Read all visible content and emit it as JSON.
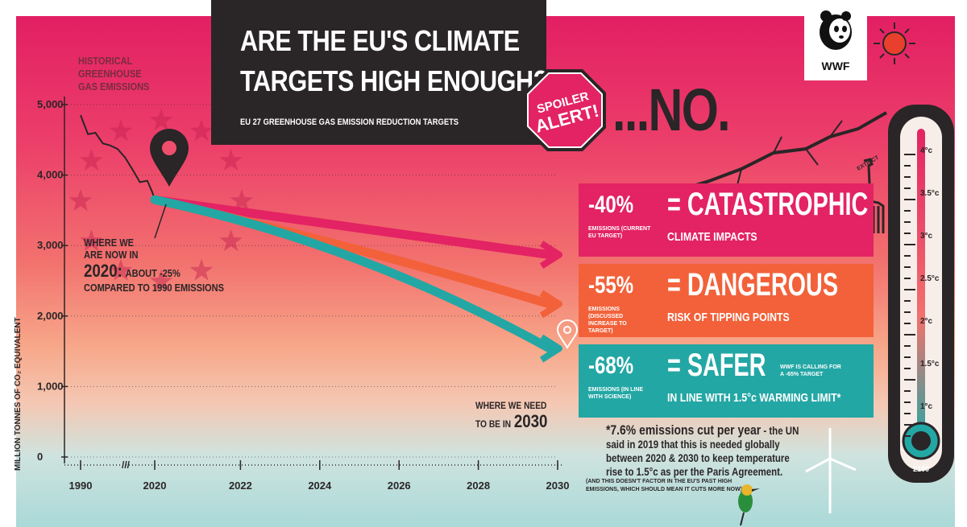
{
  "header": {
    "title_line1": "ARE THE EU'S CLIMATE",
    "title_line2": "TARGETS HIGH ENOUGH?",
    "subtitle": "EU 27 GREENHOUSE GAS EMISSION REDUCTION TARGETS",
    "spoiler_line1": "SPOILER",
    "spoiler_line2": "ALERT!",
    "answer": "...NO."
  },
  "logo": {
    "label": "WWF",
    "icon": "panda-icon"
  },
  "annotations": {
    "historical": [
      "HISTORICAL",
      "GREENHOUSE",
      "GAS EMISSIONS"
    ],
    "now_line1": "WHERE WE",
    "now_line2": "ARE NOW IN",
    "now_year": "2020:",
    "now_detail": "ABOUT -25%",
    "now_detail2": "COMPARED TO 1990 EMISSIONS",
    "need_line1": "WHERE WE NEED",
    "need_line2": "TO BE IN",
    "need_year": "2030",
    "wwf_calling": "WWF IS CALLING FOR A -65% TARGET",
    "callout_lead": "*7.6% emissions cut per year",
    "callout_rest": " - the UN said in 2019 that this is needed globally between 2020 & 2030 to keep temperature rise to 1.5°c as per the Paris Agreement.",
    "callout_note": "(AND THIS DOESN'T FACTOR IN THE EU'S PAST HIGH EMISSIONS, WHICH SHOULD MEAN IT CUTS MORE NOW)",
    "extinct": "EXTINCT"
  },
  "targets": [
    {
      "pct": "-40%",
      "pct_note": "EMISSIONS (CURRENT EU TARGET)",
      "verdict": "= CATASTROPHIC",
      "detail": "CLIMATE IMPACTS",
      "color": "#e32363"
    },
    {
      "pct": "-55%",
      "pct_note": "EMISSIONS (DISCUSSED INCREASE TO TARGET)",
      "verdict": "= DANGEROUS",
      "detail": "RISK OF TIPPING POINTS",
      "color": "#f2613a"
    },
    {
      "pct": "-68%",
      "pct_note": "EMISSIONS (IN LINE WITH SCIENCE)",
      "verdict": "= SAFER",
      "detail": "IN LINE WITH 1.5°c WARMING LIMIT*",
      "color": "#23a7a4"
    }
  ],
  "thermometer": {
    "labels": [
      "4°c",
      "3.5°c",
      "3°c",
      "2.5°c",
      "2°c",
      "1.5°c",
      "1°c"
    ],
    "year": "2100"
  },
  "chart_data": {
    "type": "line",
    "title": "ARE THE EU'S CLIMATE TARGETS HIGH ENOUGH?",
    "subtitle": "EU 27 GREENHOUSE GAS EMISSION REDUCTION TARGETS",
    "ylabel": "MILLION TONNES OF CO₂ EQUIVALENT",
    "xlabel": "",
    "ylim": [
      0,
      5500
    ],
    "y_ticks": [
      0,
      1000,
      2000,
      3000,
      4000,
      5000
    ],
    "y_tick_labels": [
      "0",
      "1,000",
      "2,000",
      "3,000",
      "4,000",
      "5,000"
    ],
    "x_tick_labels": [
      "1990",
      "2020",
      "2022",
      "2024",
      "2026",
      "2028",
      "2030"
    ],
    "axis_break": "///",
    "historical": {
      "name": "HISTORICAL GREENHOUSE GAS EMISSIONS",
      "years": [
        1990,
        1993,
        1996,
        1999,
        2002,
        2005,
        2008,
        2011,
        2014,
        2017,
        2019,
        2020
      ],
      "values": [
        4850,
        4580,
        4600,
        4450,
        4420,
        4370,
        4250,
        4080,
        3900,
        3920,
        3760,
        3650
      ]
    },
    "series": [
      {
        "years": [
          2020,
          2030
        ],
        "values": [
          3650,
          2870
        ],
        "color": "#e32363"
      },
      {
        "years": [
          2020,
          2030
        ],
        "values": [
          3650,
          2170
        ],
        "color": "#f2613a"
      },
      {
        "years": [
          2020,
          2030
        ],
        "values": [
          3650,
          1540
        ],
        "color": "#23a7a4"
      }
    ],
    "grid": false
  }
}
